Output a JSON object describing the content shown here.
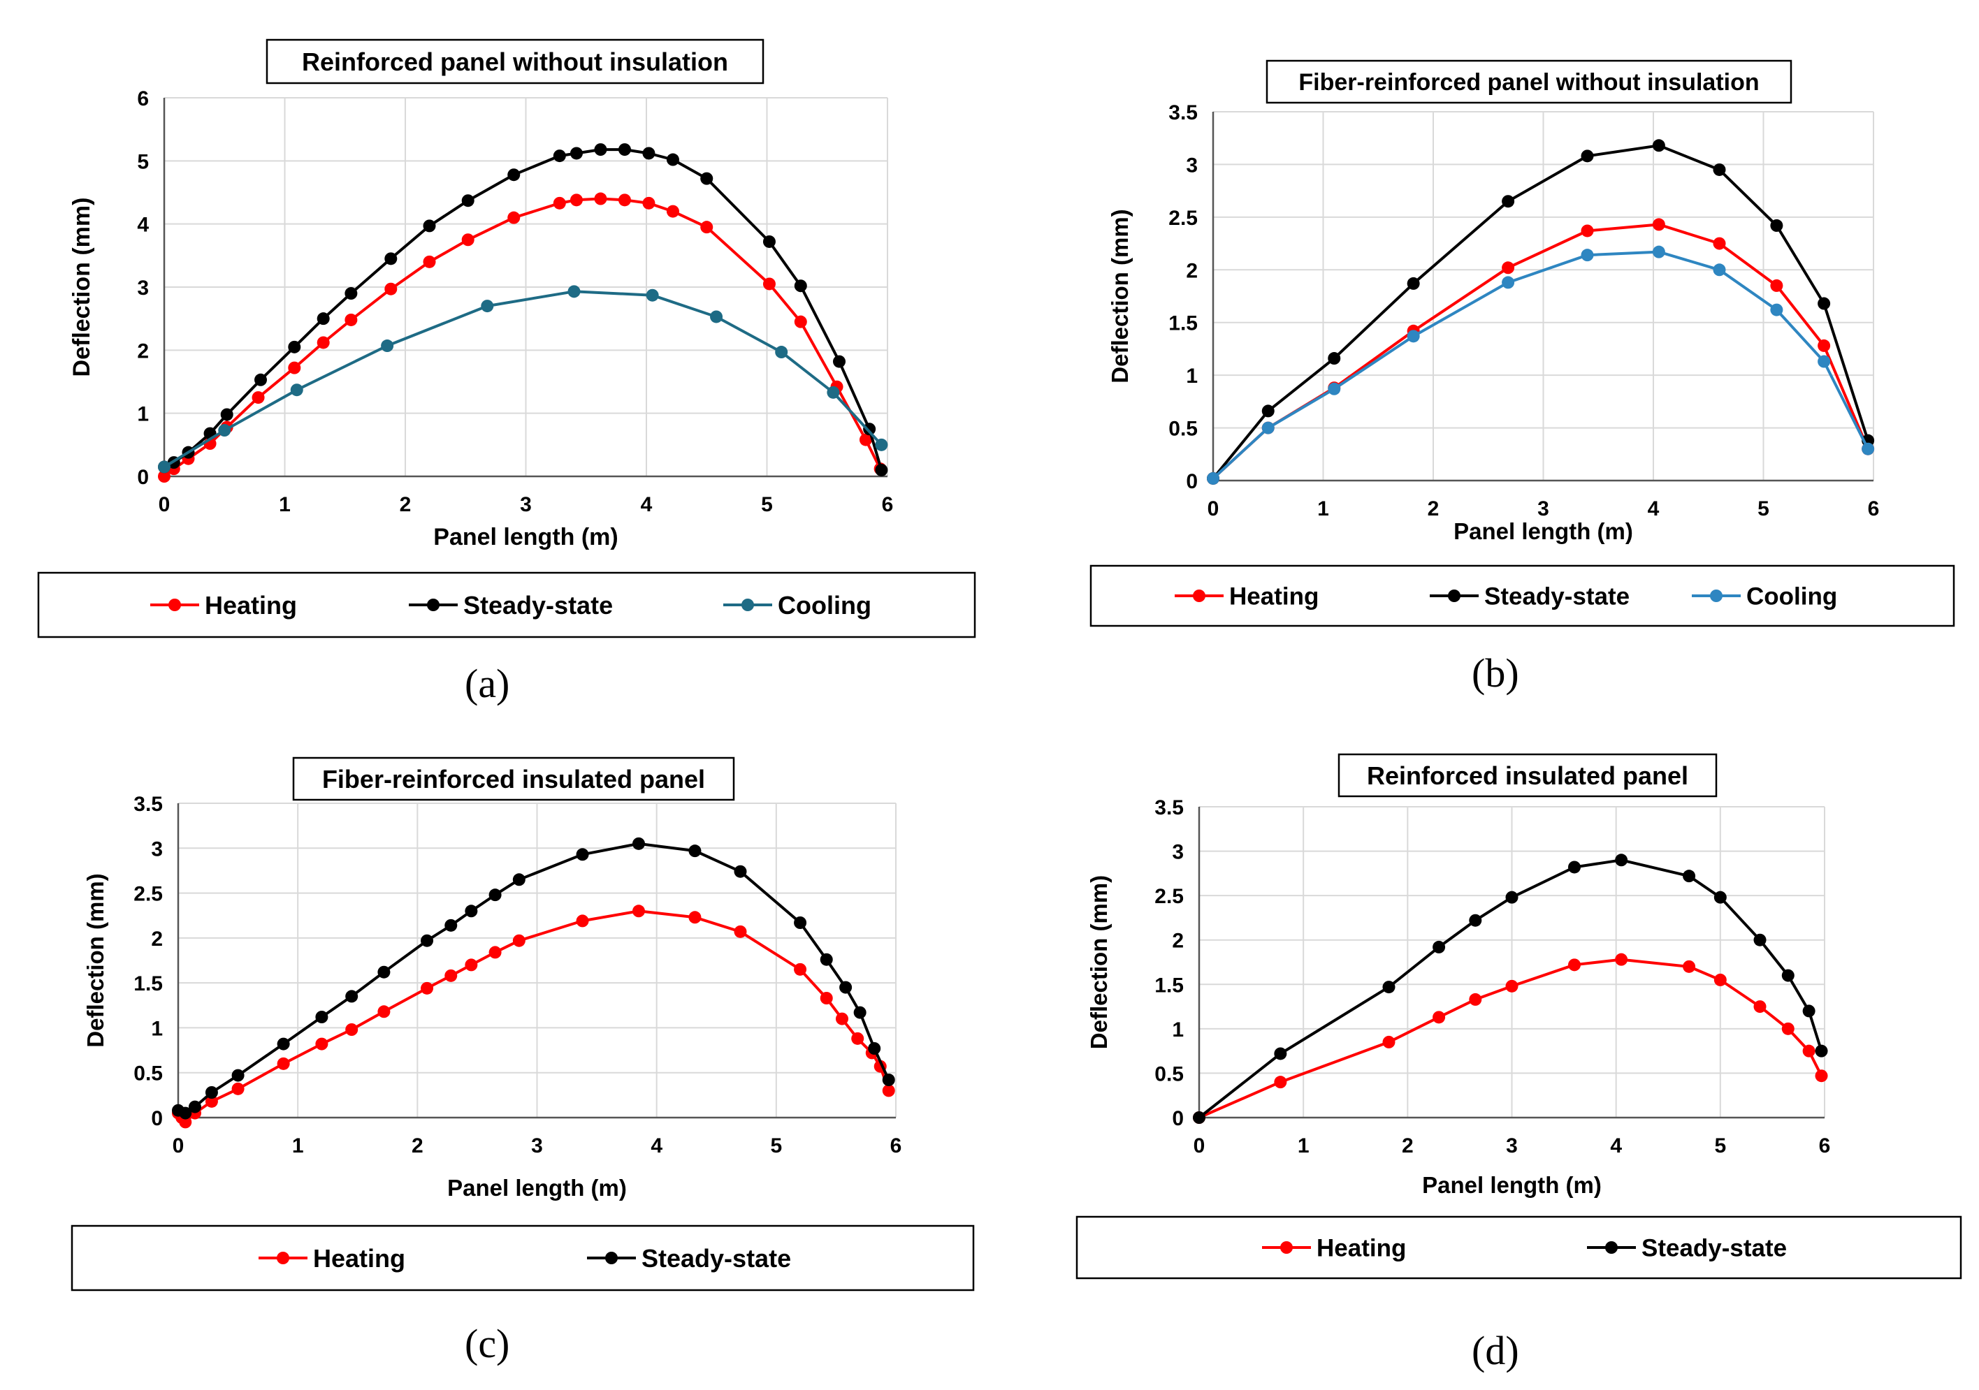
{
  "colors": {
    "heating": "#ff0000",
    "steady": "#000000",
    "cooling": "#2e86c1",
    "cooling_a": "#1e6b85",
    "grid": "#d9d9d9",
    "axis": "#555555"
  },
  "chart_data": [
    {
      "type": "line",
      "title": "Reinforced panel without insulation",
      "xlabel": "Panel length (m)",
      "ylabel": "Deflection (mm)",
      "xlim": [
        0,
        6
      ],
      "ylim": [
        0,
        6
      ],
      "xticks": [
        "0",
        "1",
        "2",
        "3",
        "4",
        "5",
        "6"
      ],
      "yticks": [
        "0",
        "1",
        "2",
        "3",
        "4",
        "5",
        "6"
      ],
      "grid": true,
      "legend_position": "bottom",
      "caption": "(a)",
      "series": [
        {
          "name": "Heating",
          "color": "heating",
          "x": [
            0,
            0.08,
            0.2,
            0.38,
            0.52,
            0.78,
            1.08,
            1.32,
            1.55,
            1.88,
            2.2,
            2.52,
            2.9,
            3.28,
            3.42,
            3.62,
            3.82,
            4.02,
            4.22,
            4.5,
            5.02,
            5.28,
            5.58,
            5.82,
            5.94
          ],
          "y": [
            0,
            0.12,
            0.28,
            0.52,
            0.78,
            1.25,
            1.72,
            2.12,
            2.48,
            2.97,
            3.4,
            3.75,
            4.1,
            4.33,
            4.38,
            4.4,
            4.38,
            4.33,
            4.2,
            3.95,
            3.05,
            2.45,
            1.42,
            0.58,
            0.12
          ]
        },
        {
          "name": "Steady-state",
          "color": "steady",
          "x": [
            0,
            0.08,
            0.2,
            0.38,
            0.52,
            0.8,
            1.08,
            1.32,
            1.55,
            1.88,
            2.2,
            2.52,
            2.9,
            3.28,
            3.42,
            3.62,
            3.82,
            4.02,
            4.22,
            4.5,
            5.02,
            5.28,
            5.6,
            5.85,
            5.95
          ],
          "y": [
            0.15,
            0.22,
            0.38,
            0.68,
            0.98,
            1.53,
            2.05,
            2.5,
            2.9,
            3.45,
            3.97,
            4.37,
            4.78,
            5.08,
            5.12,
            5.18,
            5.18,
            5.12,
            5.02,
            4.72,
            3.72,
            3.02,
            1.82,
            0.75,
            0.1
          ]
        },
        {
          "name": "Cooling",
          "color": "cooling_a",
          "x": [
            0,
            0.5,
            1.1,
            1.85,
            2.68,
            3.4,
            4.05,
            4.58,
            5.12,
            5.55,
            5.95
          ],
          "y": [
            0.15,
            0.73,
            1.37,
            2.07,
            2.7,
            2.93,
            2.87,
            2.53,
            1.97,
            1.33,
            0.5
          ]
        }
      ]
    },
    {
      "type": "line",
      "title": "Fiber-reinforced panel without insulation",
      "xlabel": "Panel length (m)",
      "ylabel": "Deflection (mm)",
      "xlim": [
        0,
        6
      ],
      "ylim": [
        0,
        3.5
      ],
      "xticks": [
        "0",
        "1",
        "2",
        "3",
        "4",
        "5",
        "6"
      ],
      "yticks": [
        "0",
        "0.5",
        "1",
        "1.5",
        "2",
        "2.5",
        "3",
        "3.5"
      ],
      "grid": true,
      "legend_position": "bottom",
      "caption": "(b)",
      "series": [
        {
          "name": "Heating",
          "color": "heating",
          "x": [
            0,
            0.5,
            1.1,
            1.82,
            2.68,
            3.4,
            4.05,
            4.6,
            5.12,
            5.55,
            5.95
          ],
          "y": [
            0.02,
            0.5,
            0.88,
            1.42,
            2.02,
            2.37,
            2.43,
            2.25,
            1.85,
            1.28,
            0.3
          ]
        },
        {
          "name": "Steady-state",
          "color": "steady",
          "x": [
            0,
            0.5,
            1.1,
            1.82,
            2.68,
            3.4,
            4.05,
            4.6,
            5.12,
            5.55,
            5.95
          ],
          "y": [
            0.02,
            0.66,
            1.16,
            1.87,
            2.65,
            3.08,
            3.18,
            2.95,
            2.42,
            1.68,
            0.38
          ]
        },
        {
          "name": "Cooling",
          "color": "cooling",
          "x": [
            0,
            0.5,
            1.1,
            1.82,
            2.68,
            3.4,
            4.05,
            4.6,
            5.12,
            5.55,
            5.95
          ],
          "y": [
            0.02,
            0.5,
            0.87,
            1.37,
            1.88,
            2.14,
            2.17,
            2.0,
            1.62,
            1.13,
            0.3
          ]
        }
      ]
    },
    {
      "type": "line",
      "title": "Fiber-reinforced insulated panel",
      "xlabel": "Panel length (m)",
      "ylabel": "Deflection (mm)",
      "xlim": [
        0,
        6
      ],
      "ylim": [
        0,
        3.5
      ],
      "xticks": [
        "0",
        "1",
        "2",
        "3",
        "4",
        "5",
        "6"
      ],
      "yticks": [
        "0",
        "0.5",
        "1",
        "1.5",
        "2",
        "2.5",
        "3",
        "3.5"
      ],
      "grid": true,
      "legend_position": "bottom",
      "caption": "(c)",
      "series": [
        {
          "name": "Heating",
          "color": "heating",
          "x": [
            0,
            0.03,
            0.06,
            0.14,
            0.28,
            0.5,
            0.88,
            1.2,
            1.45,
            1.72,
            2.08,
            2.28,
            2.45,
            2.65,
            2.85,
            3.38,
            3.85,
            4.32,
            4.7,
            5.2,
            5.42,
            5.55,
            5.68,
            5.8,
            5.87,
            5.94
          ],
          "y": [
            0.05,
            0.0,
            -0.05,
            0.05,
            0.18,
            0.32,
            0.6,
            0.82,
            0.98,
            1.18,
            1.44,
            1.58,
            1.7,
            1.84,
            1.97,
            2.19,
            2.3,
            2.23,
            2.07,
            1.65,
            1.33,
            1.1,
            0.88,
            0.72,
            0.57,
            0.3
          ]
        },
        {
          "name": "Steady-state",
          "color": "steady",
          "x": [
            0,
            0.06,
            0.14,
            0.28,
            0.5,
            0.88,
            1.2,
            1.45,
            1.72,
            2.08,
            2.28,
            2.45,
            2.65,
            2.85,
            3.38,
            3.85,
            4.32,
            4.7,
            5.2,
            5.42,
            5.58,
            5.7,
            5.82,
            5.94
          ],
          "y": [
            0.08,
            0.05,
            0.12,
            0.28,
            0.47,
            0.82,
            1.12,
            1.35,
            1.62,
            1.97,
            2.14,
            2.3,
            2.48,
            2.65,
            2.93,
            3.05,
            2.97,
            2.74,
            2.17,
            1.76,
            1.45,
            1.17,
            0.77,
            0.42
          ]
        }
      ]
    },
    {
      "type": "line",
      "title": "Reinforced insulated panel",
      "xlabel": "Panel length (m)",
      "ylabel": "Deflection (mm)",
      "xlim": [
        0,
        6
      ],
      "ylim": [
        0,
        3.5
      ],
      "xticks": [
        "0",
        "1",
        "2",
        "3",
        "4",
        "5",
        "6"
      ],
      "yticks": [
        "0",
        "0.5",
        "1",
        "1.5",
        "2",
        "2.5",
        "3",
        "3.5"
      ],
      "grid": true,
      "legend_position": "bottom",
      "caption": "(d)",
      "series": [
        {
          "name": "Heating",
          "color": "heating",
          "x": [
            0,
            0.78,
            1.82,
            2.3,
            2.65,
            3.0,
            3.6,
            4.05,
            4.7,
            5.0,
            5.38,
            5.65,
            5.85,
            5.97
          ],
          "y": [
            0,
            0.4,
            0.85,
            1.13,
            1.33,
            1.48,
            1.72,
            1.78,
            1.7,
            1.55,
            1.25,
            1.0,
            0.75,
            0.47
          ]
        },
        {
          "name": "Steady-state",
          "color": "steady",
          "x": [
            0,
            0.78,
            1.82,
            2.3,
            2.65,
            3.0,
            3.6,
            4.05,
            4.7,
            5.0,
            5.38,
            5.65,
            5.85,
            5.97
          ],
          "y": [
            0,
            0.72,
            1.47,
            1.92,
            2.22,
            2.48,
            2.82,
            2.9,
            2.72,
            2.48,
            2.0,
            1.6,
            1.2,
            0.75
          ]
        }
      ]
    }
  ]
}
